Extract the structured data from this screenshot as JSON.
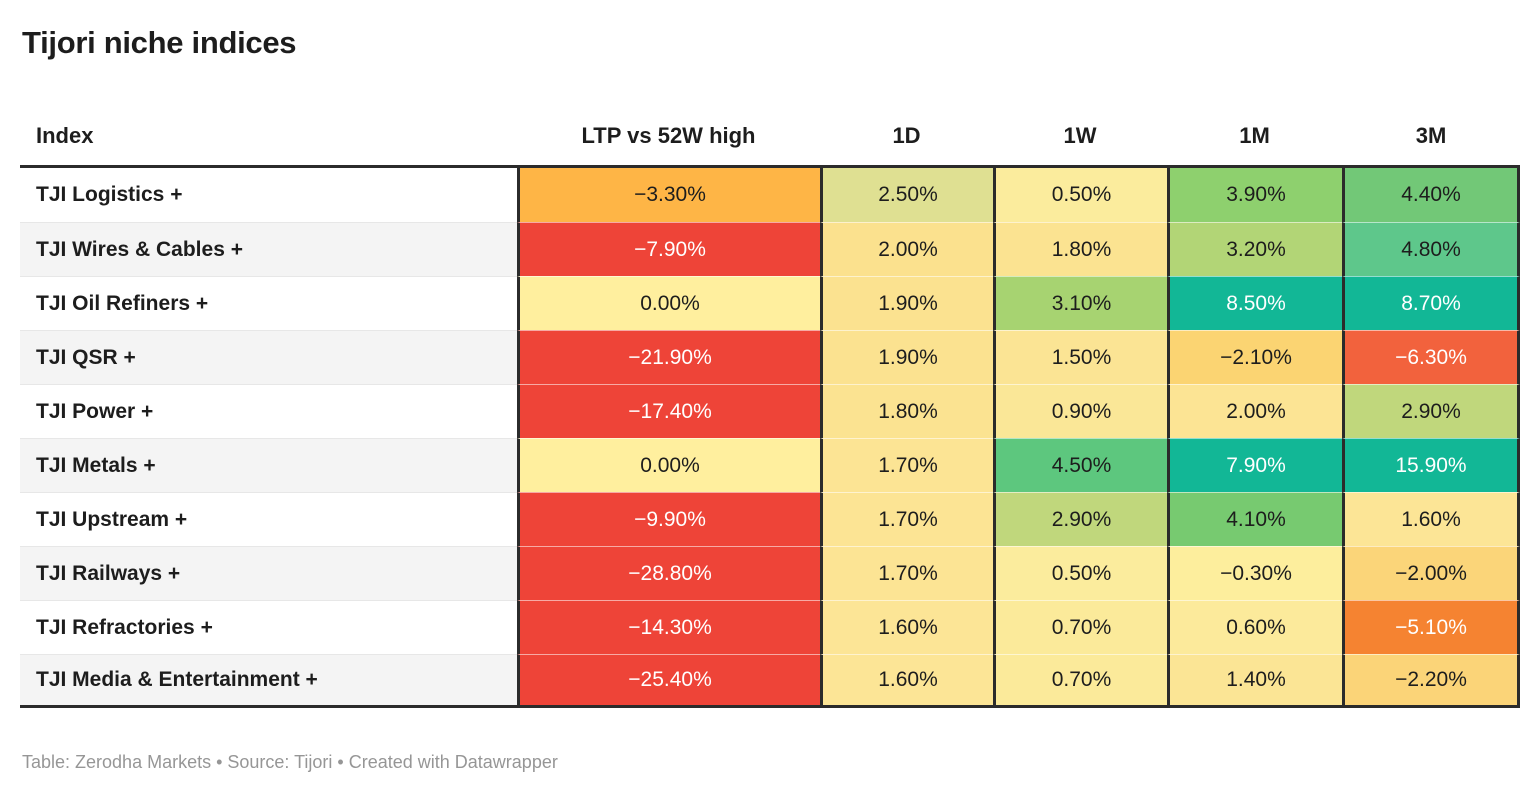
{
  "title": "Tijori niche indices",
  "footer": "Table: Zerodha Markets • Source: Tijori • Created with Datawrapper",
  "colors": {
    "dark_border": "#2b2b2b",
    "text_dark": "#1d1d1d",
    "text_light": "#ffffff",
    "row_alt_bg": "#f4f4f4",
    "footer_text": "#969696",
    "scale_red": "#ee4438",
    "scale_orange": "#feb546",
    "scale_yellow": "#ffef9e",
    "scale_green": "#8ed06e",
    "scale_teal": "#12b796"
  },
  "table": {
    "columns": [
      "Index",
      "LTP vs 52W high",
      "1D",
      "1W",
      "1M",
      "3M"
    ],
    "rows": [
      {
        "name": "TJI Logistics +",
        "cells": [
          {
            "v": "−3.30%",
            "bg": "#feb546",
            "fg": "#1d1d1d"
          },
          {
            "v": "2.50%",
            "bg": "#dfe092",
            "fg": "#1d1d1d"
          },
          {
            "v": "0.50%",
            "bg": "#fbec9d",
            "fg": "#1d1d1d"
          },
          {
            "v": "3.90%",
            "bg": "#8ed06e",
            "fg": "#1d1d1d"
          },
          {
            "v": "4.40%",
            "bg": "#72c877",
            "fg": "#1d1d1d"
          }
        ]
      },
      {
        "name": "TJI Wires & Cables +",
        "cells": [
          {
            "v": "−7.90%",
            "bg": "#ee4438",
            "fg": "#ffffff"
          },
          {
            "v": "2.00%",
            "bg": "#fbe18e",
            "fg": "#1d1d1d"
          },
          {
            "v": "1.80%",
            "bg": "#fbe391",
            "fg": "#1d1d1d"
          },
          {
            "v": "3.20%",
            "bg": "#b2d576",
            "fg": "#1d1d1d"
          },
          {
            "v": "4.80%",
            "bg": "#5ec78b",
            "fg": "#1d1d1d"
          }
        ]
      },
      {
        "name": "TJI Oil Refiners +",
        "cells": [
          {
            "v": "0.00%",
            "bg": "#ffef9e",
            "fg": "#1d1d1d"
          },
          {
            "v": "1.90%",
            "bg": "#fbe290",
            "fg": "#1d1d1d"
          },
          {
            "v": "3.10%",
            "bg": "#a7d371",
            "fg": "#1d1d1d"
          },
          {
            "v": "8.50%",
            "bg": "#12b796",
            "fg": "#ffffff"
          },
          {
            "v": "8.70%",
            "bg": "#12b796",
            "fg": "#ffffff"
          }
        ]
      },
      {
        "name": "TJI QSR +",
        "cells": [
          {
            "v": "−21.90%",
            "bg": "#ee4438",
            "fg": "#ffffff"
          },
          {
            "v": "1.90%",
            "bg": "#fbe290",
            "fg": "#1d1d1d"
          },
          {
            "v": "1.50%",
            "bg": "#fbe494",
            "fg": "#1d1d1d"
          },
          {
            "v": "−2.10%",
            "bg": "#fbd472",
            "fg": "#1d1d1d"
          },
          {
            "v": "−6.30%",
            "bg": "#f2623d",
            "fg": "#ffffff"
          }
        ]
      },
      {
        "name": "TJI Power +",
        "cells": [
          {
            "v": "−17.40%",
            "bg": "#ee4438",
            "fg": "#ffffff"
          },
          {
            "v": "1.80%",
            "bg": "#fbe391",
            "fg": "#1d1d1d"
          },
          {
            "v": "0.90%",
            "bg": "#fae797",
            "fg": "#1d1d1d"
          },
          {
            "v": "2.00%",
            "bg": "#fce494",
            "fg": "#1d1d1d"
          },
          {
            "v": "2.90%",
            "bg": "#c0d77c",
            "fg": "#1d1d1d"
          }
        ]
      },
      {
        "name": "TJI Metals +",
        "cells": [
          {
            "v": "0.00%",
            "bg": "#ffef9e",
            "fg": "#1d1d1d"
          },
          {
            "v": "1.70%",
            "bg": "#fce494",
            "fg": "#1d1d1d"
          },
          {
            "v": "4.50%",
            "bg": "#5dc77e",
            "fg": "#1d1d1d"
          },
          {
            "v": "7.90%",
            "bg": "#12b796",
            "fg": "#ffffff"
          },
          {
            "v": "15.90%",
            "bg": "#12b796",
            "fg": "#ffffff"
          }
        ]
      },
      {
        "name": "TJI Upstream +",
        "cells": [
          {
            "v": "−9.90%",
            "bg": "#ee4438",
            "fg": "#ffffff"
          },
          {
            "v": "1.70%",
            "bg": "#fce494",
            "fg": "#1d1d1d"
          },
          {
            "v": "2.90%",
            "bg": "#c0d77c",
            "fg": "#1d1d1d"
          },
          {
            "v": "4.10%",
            "bg": "#77ca70",
            "fg": "#1d1d1d"
          },
          {
            "v": "1.60%",
            "bg": "#fce596",
            "fg": "#1d1d1d"
          }
        ]
      },
      {
        "name": "TJI Railways +",
        "cells": [
          {
            "v": "−28.80%",
            "bg": "#ee4438",
            "fg": "#ffffff"
          },
          {
            "v": "1.70%",
            "bg": "#fce494",
            "fg": "#1d1d1d"
          },
          {
            "v": "0.50%",
            "bg": "#fbec9d",
            "fg": "#1d1d1d"
          },
          {
            "v": "−0.30%",
            "bg": "#fdee9d",
            "fg": "#1d1d1d"
          },
          {
            "v": "−2.00%",
            "bg": "#fbd579",
            "fg": "#1d1d1d"
          }
        ]
      },
      {
        "name": "TJI Refractories +",
        "cells": [
          {
            "v": "−14.30%",
            "bg": "#ee4438",
            "fg": "#ffffff"
          },
          {
            "v": "1.60%",
            "bg": "#fce596",
            "fg": "#1d1d1d"
          },
          {
            "v": "0.70%",
            "bg": "#fbea9a",
            "fg": "#1d1d1d"
          },
          {
            "v": "0.60%",
            "bg": "#fcea9b",
            "fg": "#1d1d1d"
          },
          {
            "v": "−5.10%",
            "bg": "#f58331",
            "fg": "#ffffff"
          }
        ]
      },
      {
        "name": "TJI Media & Entertainment +",
        "cells": [
          {
            "v": "−25.40%",
            "bg": "#ee4438",
            "fg": "#ffffff"
          },
          {
            "v": "1.60%",
            "bg": "#fce596",
            "fg": "#1d1d1d"
          },
          {
            "v": "0.70%",
            "bg": "#fbea9a",
            "fg": "#1d1d1d"
          },
          {
            "v": "1.40%",
            "bg": "#fbe595",
            "fg": "#1d1d1d"
          },
          {
            "v": "−2.20%",
            "bg": "#fbd478",
            "fg": "#1d1d1d"
          }
        ]
      }
    ]
  },
  "chart_data": {
    "type": "table",
    "title": "Tijori niche indices",
    "columns": [
      "Index",
      "LTP vs 52W high",
      "1D",
      "1W",
      "1M",
      "3M"
    ],
    "rows": [
      [
        "TJI Logistics +",
        -3.3,
        2.5,
        0.5,
        3.9,
        4.4
      ],
      [
        "TJI Wires & Cables +",
        -7.9,
        2.0,
        1.8,
        3.2,
        4.8
      ],
      [
        "TJI Oil Refiners +",
        0.0,
        1.9,
        3.1,
        8.5,
        8.7
      ],
      [
        "TJI QSR +",
        -21.9,
        1.9,
        1.5,
        -2.1,
        -6.3
      ],
      [
        "TJI Power +",
        -17.4,
        1.8,
        0.9,
        2.0,
        2.9
      ],
      [
        "TJI Metals +",
        0.0,
        1.7,
        4.5,
        7.9,
        15.9
      ],
      [
        "TJI Upstream +",
        -9.9,
        1.7,
        2.9,
        4.1,
        1.6
      ],
      [
        "TJI Railways +",
        -28.8,
        1.7,
        0.5,
        -0.3,
        -2.0
      ],
      [
        "TJI Refractories +",
        -14.3,
        1.6,
        0.7,
        0.6,
        -5.1
      ],
      [
        "TJI Media & Entertainment +",
        -25.4,
        1.6,
        0.7,
        1.4,
        -2.2
      ]
    ],
    "units": "percent",
    "color_scale": "diverging red (negative) → pale yellow (≈0) → green/teal (positive), applied per cell",
    "legend_position": "none",
    "grid": "heatmap table with dark column separators"
  }
}
